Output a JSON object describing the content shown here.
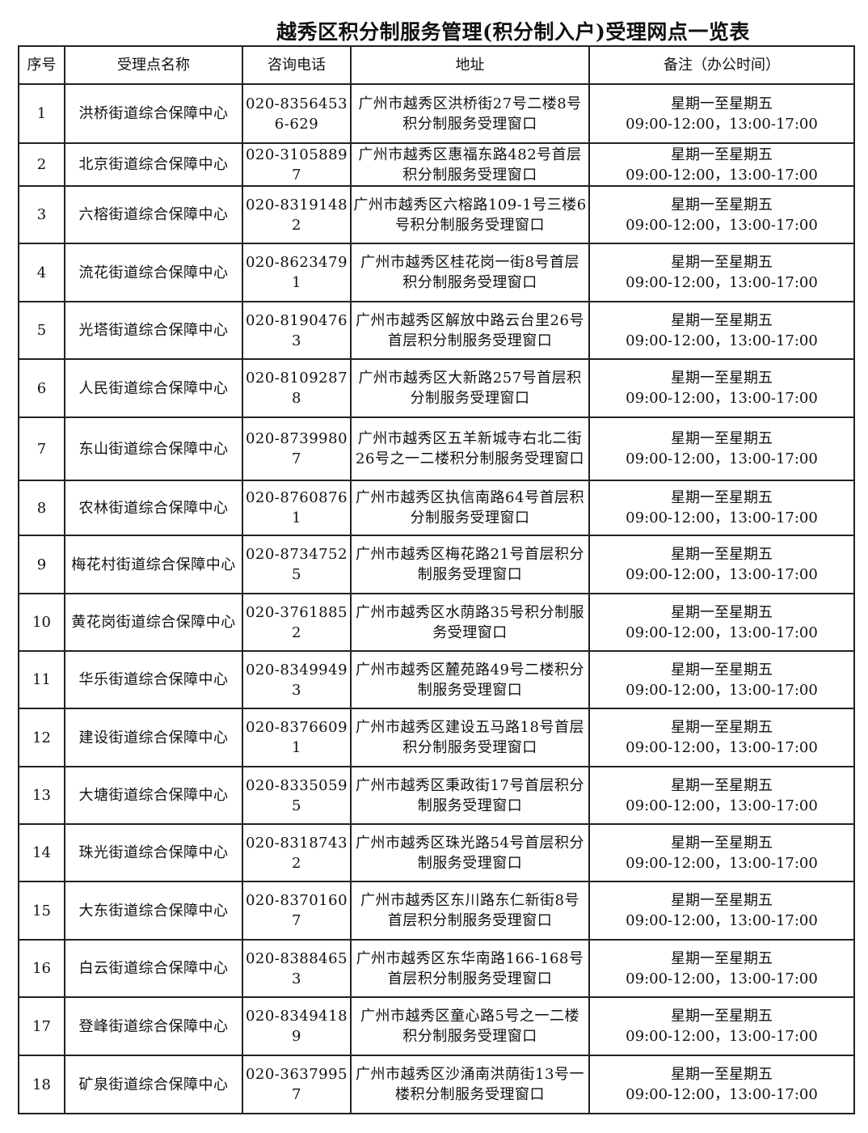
{
  "title": "越秀区积分制服务管理(积分制入户)受理网点一览表",
  "headers": [
    "序号",
    "受理点名称",
    "咨询电话",
    "地址",
    "备注（办公时间）"
  ],
  "rows": [
    {
      "no": "1",
      "name": "洪桥街道综合保障中心",
      "phone": "020-83564536-629",
      "addr": "广州市越秀区洪桥街27号二楼8号积分制服务受理窗口",
      "days": "星期一至星期五",
      "hours": "09:00-12:00，13:00-17:00"
    },
    {
      "no": "2",
      "name": "北京街道综合保障中心",
      "phone": "020-31058897",
      "addr": "广州市越秀区惠福东路482号首层积分制服务受理窗口",
      "days": "星期一至星期五",
      "hours": "09:00-12:00，13:00-17:00"
    },
    {
      "no": "3",
      "name": "六榕街道综合保障中心",
      "phone": "020-83191482",
      "addr": "广州市越秀区六榕路109-1号三楼6号积分制服务受理窗口",
      "days": "星期一至星期五",
      "hours": "09:00-12:00，13:00-17:00"
    },
    {
      "no": "4",
      "name": "流花街道综合保障中心",
      "phone": "020-86234791",
      "addr": "广州市越秀区桂花岗一街8号首层积分制服务受理窗口",
      "days": "星期一至星期五",
      "hours": "09:00-12:00，13:00-17:00"
    },
    {
      "no": "5",
      "name": "光塔街道综合保障中心",
      "phone": "020-81904763",
      "addr": "广州市越秀区解放中路云台里26号首层积分制服务受理窗口",
      "days": "星期一至星期五",
      "hours": "09:00-12:00，13:00-17:00"
    },
    {
      "no": "6",
      "name": "人民街道综合保障中心",
      "phone": "020-81092878",
      "addr": "广州市越秀区大新路257号首层积分制服务受理窗口",
      "days": "星期一至星期五",
      "hours": "09:00-12:00，13:00-17:00"
    },
    {
      "no": "7",
      "name": "东山街道综合保障中心",
      "phone": "020-87399807",
      "addr": "广州市越秀区五羊新城寺右北二街26号之一二楼积分制服务受理窗口",
      "days": "星期一至星期五",
      "hours": "09:00-12:00，13:00-17:00"
    },
    {
      "no": "8",
      "name": "农林街道综合保障中心",
      "phone": "020-87608761",
      "addr": "广州市越秀区执信南路64号首层积分制服务受理窗口",
      "days": "星期一至星期五",
      "hours": "09:00-12:00，13:00-17:00"
    },
    {
      "no": "9",
      "name": "梅花村街道综合保障中心",
      "phone": "020-87347525",
      "addr": "广州市越秀区梅花路21号首层积分制服务受理窗口",
      "days": "星期一至星期五",
      "hours": "09:00-12:00，13:00-17:00"
    },
    {
      "no": "10",
      "name": "黄花岗街道综合保障中心",
      "phone": "020-37618852",
      "addr": "广州市越秀区水荫路35号积分制服务受理窗口",
      "days": "星期一至星期五",
      "hours": "09:00-12:00，13:00-17:00"
    },
    {
      "no": "11",
      "name": "华乐街道综合保障中心",
      "phone": "020-83499493",
      "addr": "广州市越秀区麓苑路49号二楼积分制服务受理窗口",
      "days": "星期一至星期五",
      "hours": "09:00-12:00，13:00-17:00"
    },
    {
      "no": "12",
      "name": "建设街道综合保障中心",
      "phone": "020-83766091",
      "addr": "广州市越秀区建设五马路18号首层积分制服务受理窗口",
      "days": "星期一至星期五",
      "hours": "09:00-12:00，13:00-17:00"
    },
    {
      "no": "13",
      "name": "大塘街道综合保障中心",
      "phone": "020-83350595",
      "addr": "广州市越秀区秉政街17号首层积分制服务受理窗口",
      "days": "星期一至星期五",
      "hours": "09:00-12:00，13:00-17:00"
    },
    {
      "no": "14",
      "name": "珠光街道综合保障中心",
      "phone": "020-83187432",
      "addr": "广州市越秀区珠光路54号首层积分制服务受理窗口",
      "days": "星期一至星期五",
      "hours": "09:00-12:00，13:00-17:00"
    },
    {
      "no": "15",
      "name": "大东街道综合保障中心",
      "phone": "020-83701607",
      "addr": "广州市越秀区东川路东仁新街8号首层积分制服务受理窗口",
      "days": "星期一至星期五",
      "hours": "09:00-12:00，13:00-17:00"
    },
    {
      "no": "16",
      "name": "白云街道综合保障中心",
      "phone": "020-83884653",
      "addr": "广州市越秀区东华南路166-168号首层积分制服务受理窗口",
      "days": "星期一至星期五",
      "hours": "09:00-12:00，13:00-17:00"
    },
    {
      "no": "17",
      "name": "登峰街道综合保障中心",
      "phone": "020-83494189",
      "addr": "广州市越秀区童心路5号之一二楼积分制服务受理窗口",
      "days": "星期一至星期五",
      "hours": "09:00-12:00，13:00-17:00"
    },
    {
      "no": "18",
      "name": "矿泉街道综合保障中心",
      "phone": "020-36379957",
      "addr": "广州市越秀区沙涌南洪荫街13号一楼积分制服务受理窗口",
      "days": "星期一至星期五",
      "hours": "09:00-12:00，13:00-17:00"
    }
  ]
}
